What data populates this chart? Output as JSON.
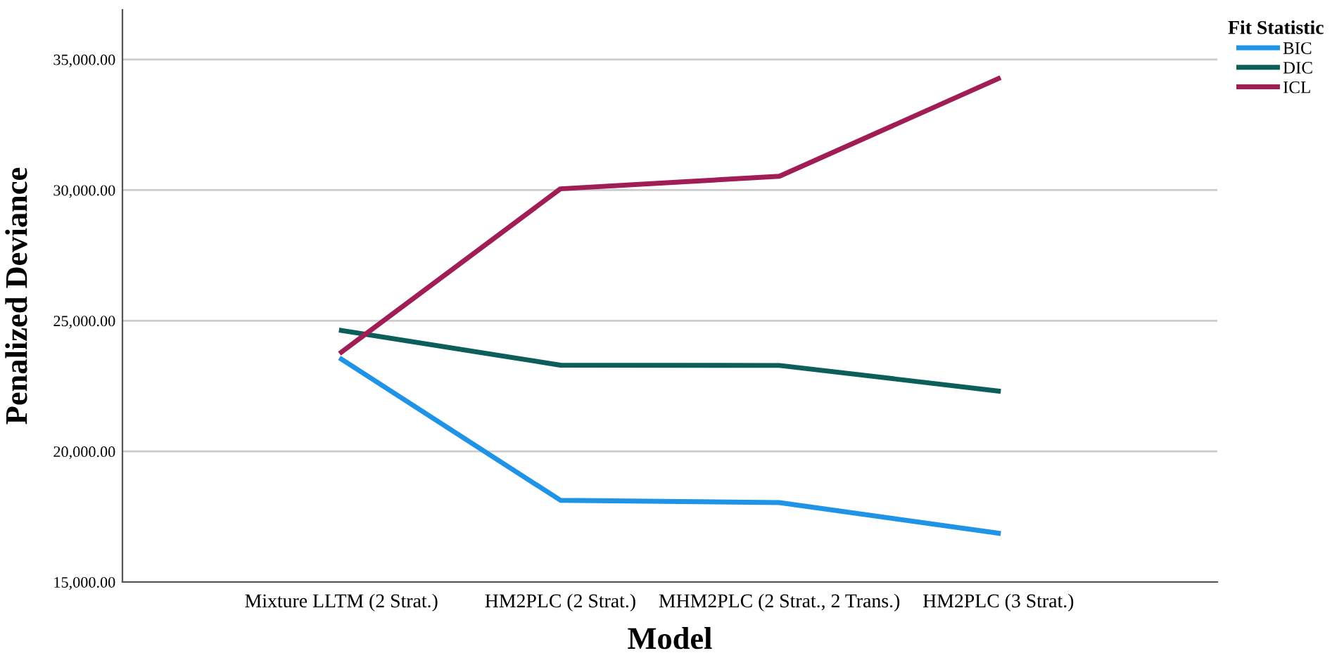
{
  "chart_data": {
    "type": "line",
    "xlabel": "Model",
    "ylabel": "Penalized Deviance",
    "legend_title": "Fit Statistic",
    "categories": [
      "Mixture LLTM (2 Strat.)",
      "HM2PLC (2 Strat.)",
      "MHM2PLC (2 Strat., 2 Trans.)",
      "HM2PLC (3 Strat.)"
    ],
    "series": [
      {
        "name": "BIC",
        "color": "#1f94e6",
        "values": [
          23530,
          18130,
          18040,
          16870
        ]
      },
      {
        "name": "DIC",
        "color": "#0b5e5a",
        "values": [
          24630,
          23300,
          23290,
          22310
        ]
      },
      {
        "name": "ICL",
        "color": "#a11d55",
        "values": [
          23800,
          30050,
          30530,
          34270
        ]
      }
    ],
    "ylim": [
      15000,
      36900
    ],
    "yticks": [
      {
        "value": 15000,
        "label": "15,000.00"
      },
      {
        "value": 20000,
        "label": "20,000.00"
      },
      {
        "value": 25000,
        "label": "25,000.00"
      },
      {
        "value": 30000,
        "label": "30,000.00"
      },
      {
        "value": 35000,
        "label": "35,000.00"
      }
    ],
    "grid": "y",
    "legend": "top right",
    "marker": "none",
    "line_style": "solid"
  }
}
